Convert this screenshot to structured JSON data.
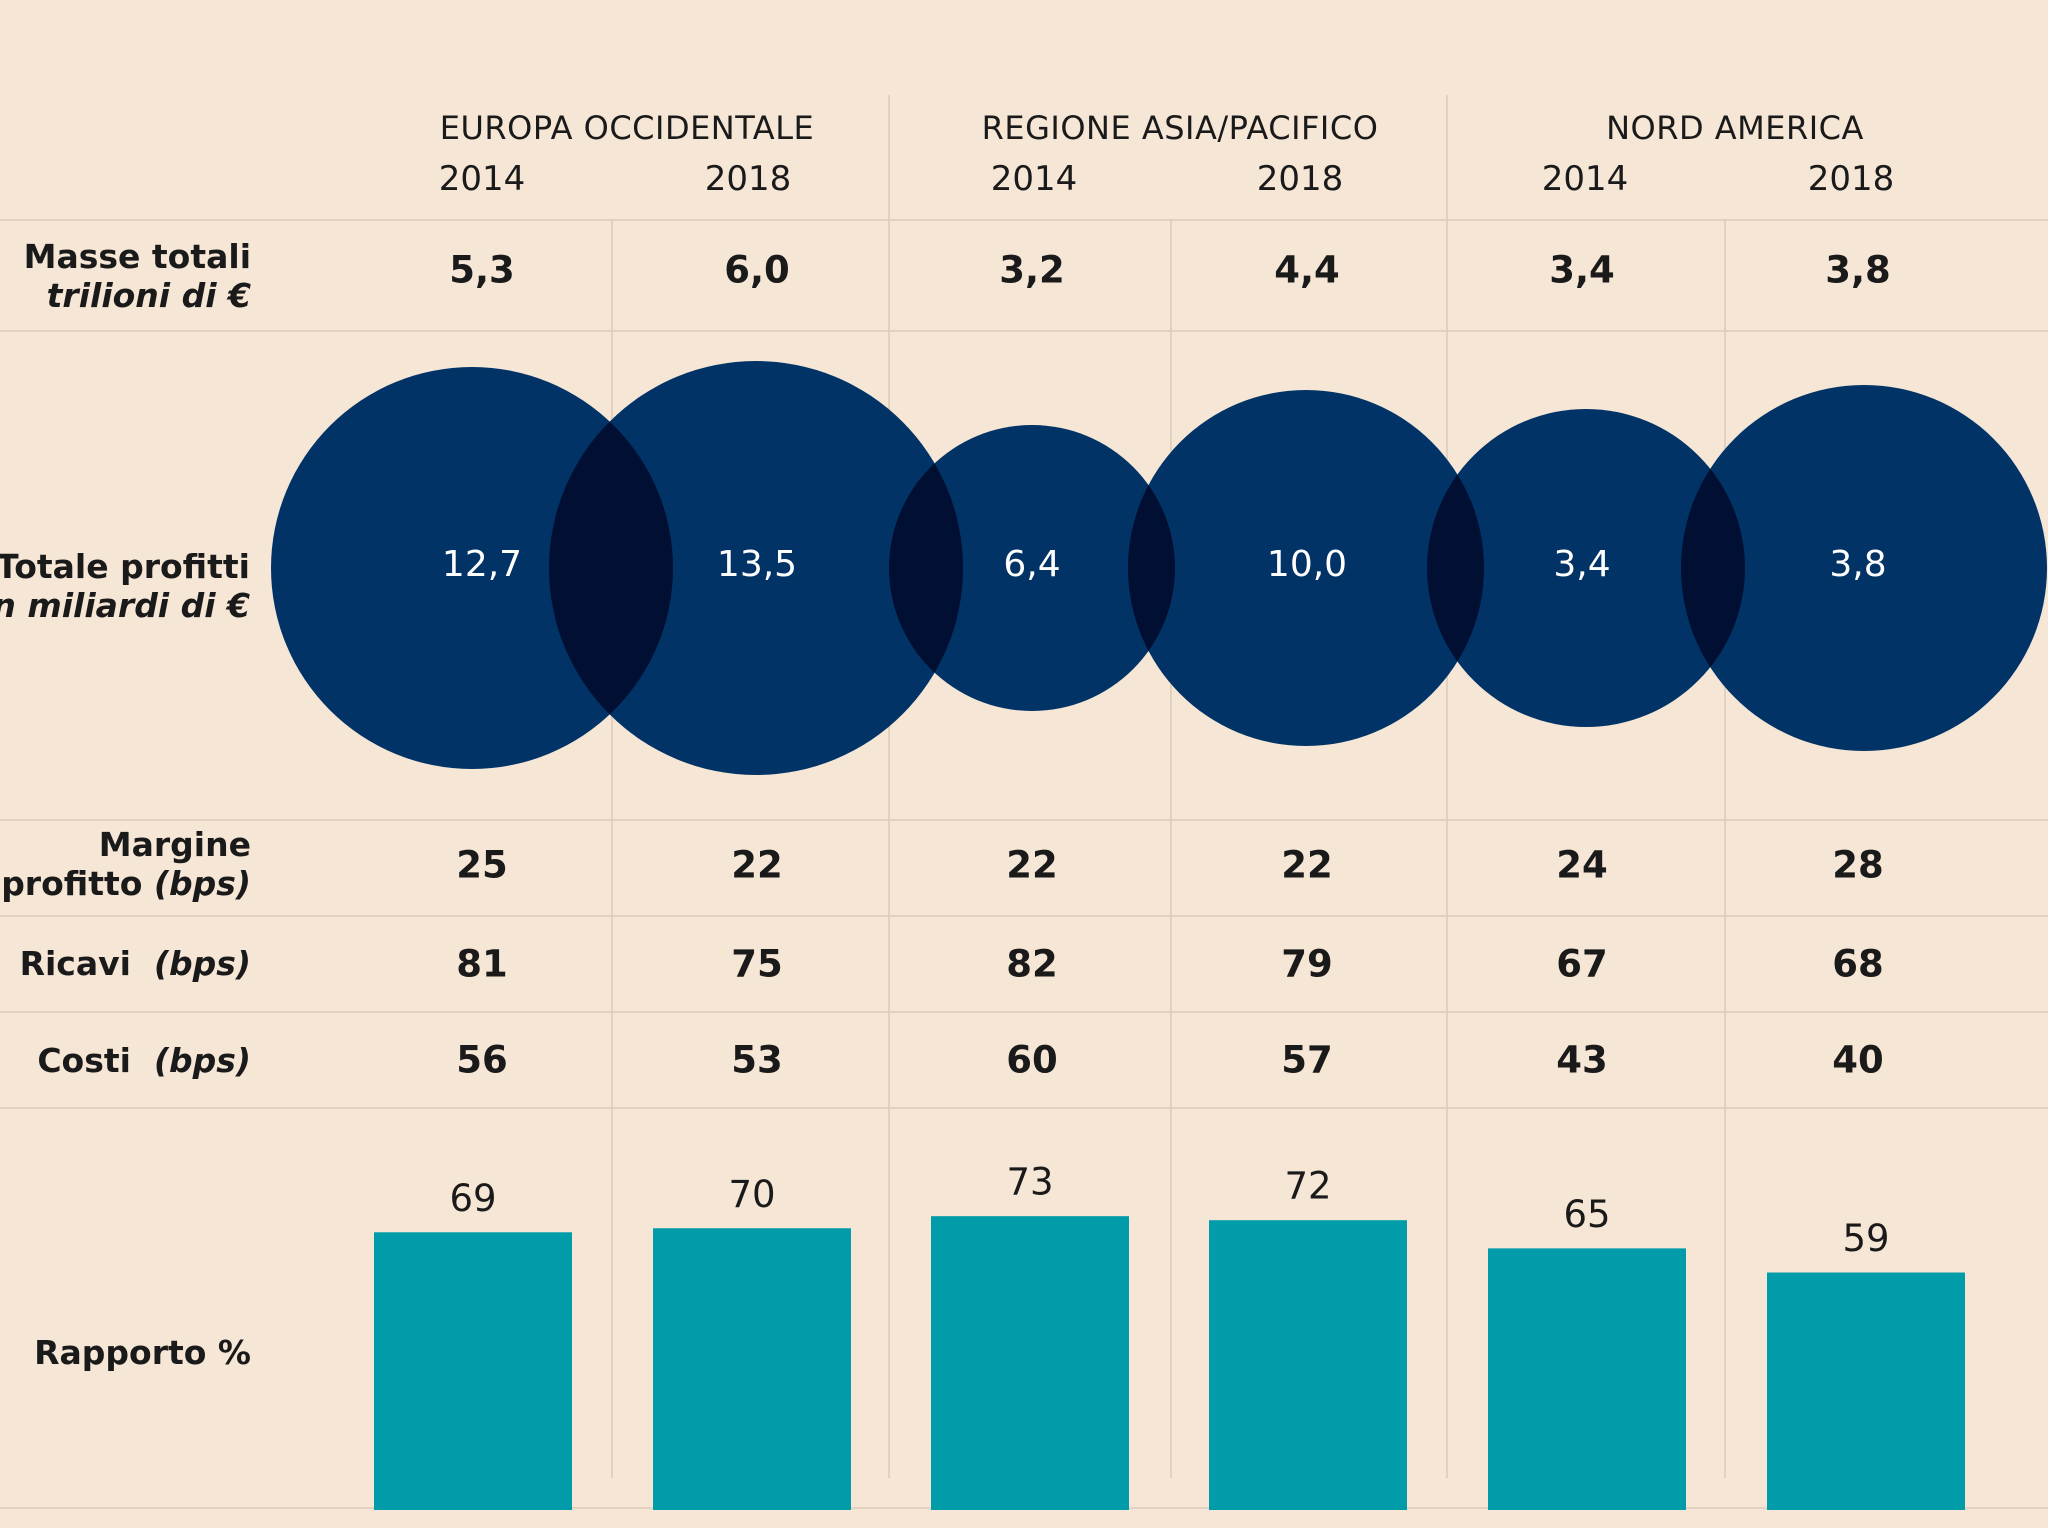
{
  "groups": [
    {
      "name": "EUROPA OCCIDENTALE"
    },
    {
      "name": "REGIONE ASIA/PACIFICO"
    },
    {
      "name": "NORD AMERICA"
    }
  ],
  "years": [
    "2014",
    "2018",
    "2014",
    "2018",
    "2014",
    "2018"
  ],
  "rows": {
    "masse": {
      "label": "Masse totali",
      "sub": "trilioni di €",
      "values": [
        "5,3",
        "6,0",
        "3,2",
        "4,4",
        "3,4",
        "3,8"
      ]
    },
    "profitti": {
      "label": "Totale profitti",
      "sub": "in miliardi di €",
      "values": [
        "12,7",
        "13,5",
        "6,4",
        "10,0",
        "3,4",
        "3,8"
      ]
    },
    "margine": {
      "label": "Margine",
      "label2": "profitto",
      "sub": "(bps)",
      "values": [
        "25",
        "22",
        "22",
        "22",
        "24",
        "28"
      ]
    },
    "ricavi": {
      "label": "Ricavi",
      "sub": "(bps)",
      "values": [
        "81",
        "75",
        "82",
        "79",
        "67",
        "68"
      ]
    },
    "costi": {
      "label": "Costi",
      "sub": "(bps)",
      "values": [
        "56",
        "53",
        "60",
        "57",
        "43",
        "40"
      ]
    },
    "rapporto": {
      "label": "Rapporto %"
    }
  },
  "chart_data": [
    {
      "type": "scatter",
      "title": "Totale profitti in miliardi di €",
      "categories": [
        "Europa Occidentale 2014",
        "Europa Occidentale 2018",
        "Regione Asia/Pacifico 2014",
        "Regione Asia/Pacifico 2018",
        "Nord America 2014",
        "Nord America 2018"
      ],
      "values": [
        12.7,
        13.5,
        6.4,
        10.0,
        3.4,
        3.8
      ],
      "encoding": "circle-area"
    },
    {
      "type": "bar",
      "title": "Rapporto %",
      "categories": [
        "Europa Occidentale 2014",
        "Europa Occidentale 2018",
        "Regione Asia/Pacifico 2014",
        "Regione Asia/Pacifico 2018",
        "Nord America 2014",
        "Nord America 2018"
      ],
      "values": [
        69,
        70,
        73,
        72,
        65,
        59
      ],
      "ylim": [
        0,
        100
      ]
    }
  ],
  "colors": {
    "background": "#f5e6d6",
    "circle": "#023366",
    "circle_overlap": "#010f33",
    "bar": "#019ca9",
    "grid": "#d9cab9",
    "text": "#1a1a1a",
    "circle_label": "#ffffff"
  }
}
